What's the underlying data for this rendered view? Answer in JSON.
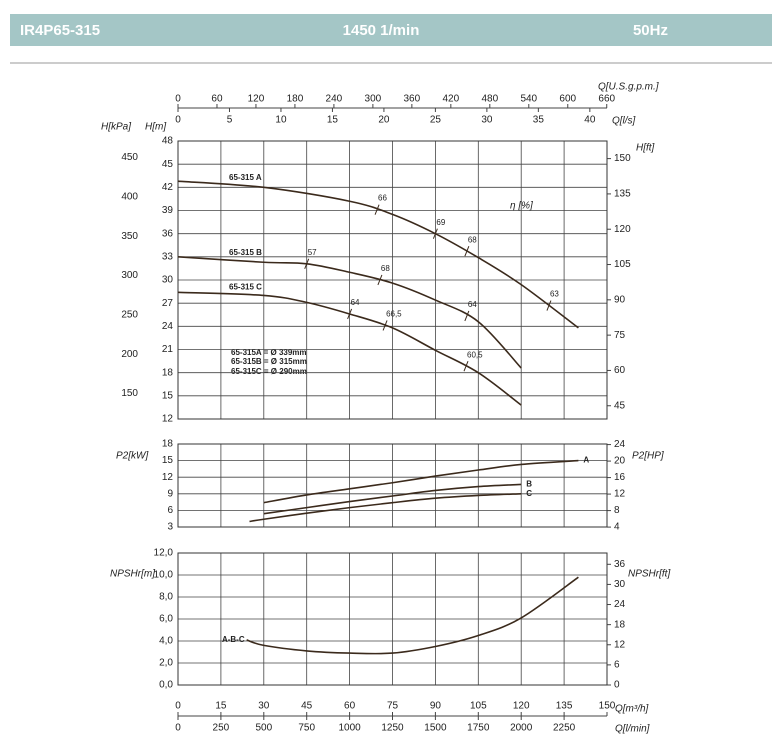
{
  "header": {
    "model": "IR4P65-315",
    "speed": "1450 1/min",
    "frequency": "50Hz"
  },
  "chart_data": [
    {
      "type": "line",
      "ylabel": "H[m]",
      "y2label": "H[ft]",
      "y3label": "H[kPa]",
      "x2label": "Q[l/s]",
      "x3label": "Q[U.S.g.p.m.]",
      "eta_label": "η [%]",
      "xlim": [
        0,
        150
      ],
      "ylim": [
        12,
        48
      ],
      "yticks": [
        12,
        15,
        18,
        21,
        24,
        27,
        30,
        33,
        36,
        39,
        42,
        45,
        48
      ],
      "y2lim": [
        39.37,
        157.48
      ],
      "y2ticks": [
        45,
        60,
        75,
        90,
        105,
        120,
        135,
        150
      ],
      "y3lim": [
        117.7,
        470.9
      ],
      "y3ticks": [
        150,
        200,
        250,
        300,
        350,
        400,
        450
      ],
      "x2lim": [
        0,
        41.667
      ],
      "x2ticks": [
        0,
        5,
        10,
        15,
        20,
        25,
        30,
        35,
        40
      ],
      "x3lim": [
        0,
        660.4
      ],
      "x3ticks": [
        0,
        60,
        120,
        180,
        240,
        300,
        360,
        420,
        480,
        540,
        600,
        660
      ],
      "grid": true,
      "notes": [
        "65-315A = Ø 339mm",
        "65-315B = Ø 315mm",
        "65-315C = Ø 290mm"
      ],
      "series": [
        {
          "name": "65-315 A",
          "color": "#3b2a1c",
          "x": [
            0,
            30,
            60,
            75,
            90,
            105,
            120,
            140
          ],
          "values": [
            42.8,
            42.0,
            40.2,
            38.5,
            36.0,
            32.9,
            29.4,
            23.8
          ],
          "efficiency": [
            {
              "x": 69.6,
              "value": 66
            },
            {
              "x": 90,
              "value": 69
            },
            {
              "x": 101,
              "value": 68
            },
            {
              "x": 129.7,
              "value": 63
            }
          ]
        },
        {
          "name": "65-315 B",
          "color": "#3b2a1c",
          "x": [
            0,
            30,
            45,
            60,
            75,
            90,
            105,
            120
          ],
          "values": [
            33.0,
            32.3,
            32.1,
            31.0,
            29.6,
            27.4,
            24.6,
            18.6
          ],
          "efficiency": [
            {
              "x": 45,
              "value": 57
            },
            {
              "x": 70.6,
              "value": 68
            },
            {
              "x": 101,
              "value": 64
            }
          ]
        },
        {
          "name": "65-315 C",
          "color": "#3b2a1c",
          "x": [
            0,
            30,
            45,
            60,
            75,
            90,
            105,
            120
          ],
          "values": [
            28.4,
            28.0,
            27.1,
            25.6,
            23.8,
            20.9,
            18.0,
            13.8
          ],
          "efficiency": [
            {
              "x": 60,
              "value": 64
            },
            {
              "x": 72.4,
              "value": 66.5,
              "label": "66,5"
            },
            {
              "x": 100.7,
              "value": 60.5,
              "label": "60,5"
            }
          ]
        }
      ]
    },
    {
      "type": "line",
      "ylabel": "P2[kW]",
      "y2label": "P2[HP]",
      "xlim": [
        0,
        150
      ],
      "ylim": [
        3,
        18
      ],
      "yticks": [
        3,
        6,
        9,
        12,
        15,
        18
      ],
      "y2lim": [
        4.023,
        24.14
      ],
      "y2ticks": [
        4,
        8,
        12,
        16,
        20,
        24
      ],
      "grid": true,
      "series": [
        {
          "name": "A",
          "color": "#3b2a1c",
          "x": [
            30,
            45,
            60,
            75,
            90,
            105,
            120,
            140
          ],
          "values": [
            7.4,
            8.8,
            9.9,
            11.0,
            12.2,
            13.3,
            14.3,
            15.0
          ]
        },
        {
          "name": "B",
          "color": "#3b2a1c",
          "x": [
            30,
            45,
            60,
            75,
            90,
            105,
            120
          ],
          "values": [
            5.4,
            6.5,
            7.6,
            8.6,
            9.6,
            10.3,
            10.7
          ]
        },
        {
          "name": "C",
          "color": "#3b2a1c",
          "x": [
            25,
            30,
            45,
            60,
            75,
            90,
            105,
            120
          ],
          "values": [
            4.0,
            4.4,
            5.5,
            6.5,
            7.4,
            8.2,
            8.7,
            9.0
          ]
        }
      ]
    },
    {
      "type": "line",
      "ylabel": "NPSHr[m]",
      "y2label": "NPSHr[ft]",
      "xlabel": "Q[m³/h]",
      "x2label": "Q[l/min]",
      "xlim": [
        0,
        150
      ],
      "xticks": [
        0,
        15,
        30,
        45,
        60,
        75,
        90,
        105,
        120,
        135,
        150
      ],
      "x2lim": [
        0,
        2500
      ],
      "x2ticks": [
        0,
        250,
        500,
        750,
        1000,
        1250,
        1500,
        1750,
        2000,
        2250
      ],
      "ylim": [
        0,
        12
      ],
      "yticks": [
        {
          "value": 0,
          "label": "0,0"
        },
        {
          "value": 2,
          "label": "2,0"
        },
        {
          "value": 4,
          "label": "4,0"
        },
        {
          "value": 6,
          "label": "6,0"
        },
        {
          "value": 8,
          "label": "8,0"
        },
        {
          "value": 10,
          "label": "10,0"
        },
        {
          "value": 12,
          "label": "12,0"
        }
      ],
      "y2lim": [
        0,
        39.37
      ],
      "y2ticks": [
        0,
        6,
        12,
        18,
        24,
        30,
        36
      ],
      "grid": true,
      "series": [
        {
          "name": "A-B-C",
          "color": "#3b2a1c",
          "x": [
            24,
            30,
            45,
            60,
            75,
            90,
            105,
            120,
            140
          ],
          "values": [
            4.1,
            3.6,
            3.1,
            2.9,
            2.9,
            3.5,
            4.5,
            6.1,
            9.8
          ]
        }
      ]
    }
  ]
}
